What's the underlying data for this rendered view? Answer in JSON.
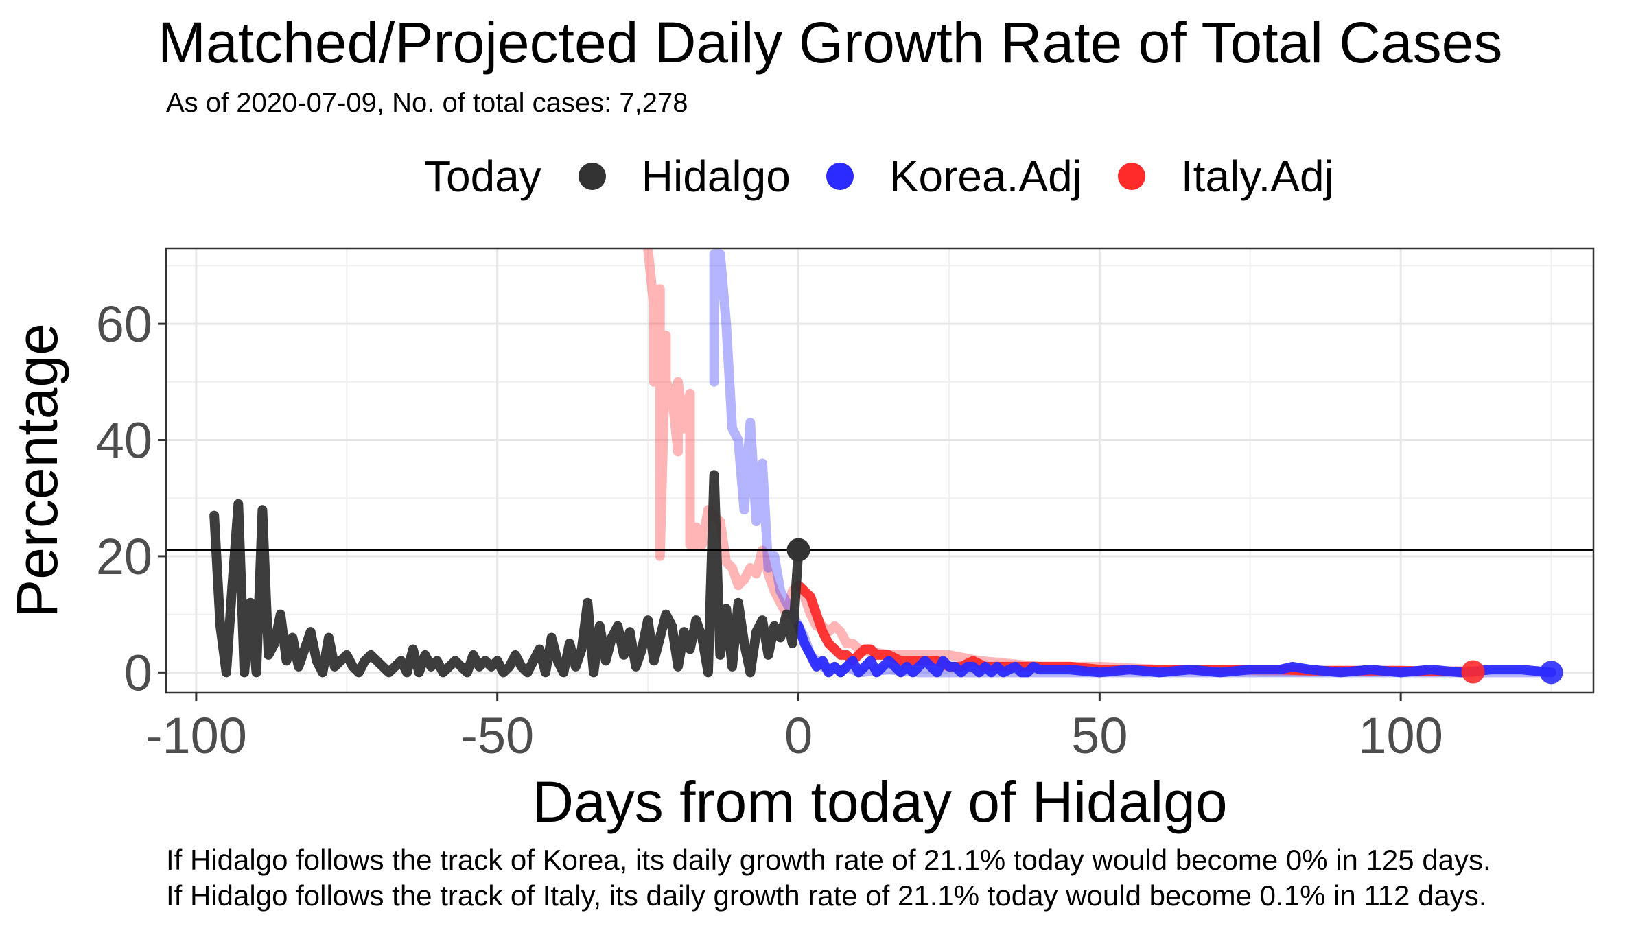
{
  "title": "Matched/Projected Daily Growth Rate of Total Cases",
  "subtitle": "As of 2020-07-09, No. of total cases: 7,278",
  "legend": {
    "title": "Today",
    "items": [
      {
        "label": "Hidalgo",
        "color": "#333333"
      },
      {
        "label": "Korea.Adj",
        "color": "#2b2bff"
      },
      {
        "label": "Italy.Adj",
        "color": "#ff2b2b"
      }
    ]
  },
  "footnotes": [
    "If Hidalgo follows the track of Korea, its daily growth rate of 21.1% today would become 0% in 125 days.",
    "If Hidalgo follows the track of Italy, its daily growth rate of 21.1% today would become 0.1% in 112 days."
  ],
  "chart_data": {
    "type": "line",
    "xlabel": "Days from today of Hidalgo",
    "ylabel": "Percentage",
    "xlim": [
      -105,
      132
    ],
    "ylim": [
      -3.5,
      73
    ],
    "xticks": [
      -100,
      -50,
      0,
      50,
      100
    ],
    "yticks": [
      0,
      20,
      40,
      60
    ],
    "grid": true,
    "legend_position": "top",
    "hline": 21.1,
    "today_point": {
      "x": 0,
      "y": 21.1
    },
    "series": [
      {
        "name": "Hidalgo",
        "color": "#333333",
        "x": [
          -97,
          -96,
          -95,
          -94,
          -93,
          -92,
          -91,
          -90,
          -89,
          -88,
          -87,
          -86,
          -85,
          -84,
          -83,
          -82,
          -81,
          -80,
          -79,
          -78,
          -77,
          -76,
          -75,
          -74,
          -73,
          -72,
          -71,
          -70,
          -69,
          -68,
          -67,
          -66,
          -65,
          -64,
          -63,
          -62,
          -61,
          -60,
          -59,
          -58,
          -57,
          -56,
          -55,
          -54,
          -53,
          -52,
          -51,
          -50,
          -49,
          -48,
          -47,
          -46,
          -45,
          -44,
          -43,
          -42,
          -41,
          -40,
          -39,
          -38,
          -37,
          -36,
          -35,
          -34,
          -33,
          -32,
          -31,
          -30,
          -29,
          -28,
          -27,
          -26,
          -25,
          -24,
          -23,
          -22,
          -21,
          -20,
          -19,
          -18,
          -17,
          -16,
          -15,
          -14,
          -13,
          -12,
          -11,
          -10,
          -9,
          -8,
          -7,
          -6,
          -5,
          -4,
          -3,
          -2,
          -1,
          0
        ],
        "y": [
          27,
          8,
          0,
          15,
          29,
          0,
          12,
          0,
          28,
          3,
          5,
          10,
          2,
          6,
          1,
          4,
          7,
          2,
          0,
          6,
          1,
          2,
          3,
          1,
          0,
          2,
          3,
          2,
          1,
          0,
          1,
          2,
          0,
          4,
          0,
          3,
          1,
          2,
          0,
          1,
          2,
          1,
          0,
          3,
          1,
          2,
          1,
          2,
          0,
          1,
          3,
          1,
          0,
          2,
          4,
          0,
          6,
          2,
          0,
          5,
          1,
          4,
          12,
          0,
          8,
          2,
          6,
          8,
          3,
          7,
          1,
          4,
          9,
          2,
          6,
          10,
          8,
          1,
          7,
          4,
          9,
          6,
          0,
          34,
          3,
          11,
          1,
          12,
          5,
          0,
          7,
          9,
          3,
          8,
          6,
          10,
          5,
          21.1
        ]
      },
      {
        "name": "Korea.Adj projected",
        "color": "#2b2bff",
        "x": [
          0,
          1,
          2,
          3,
          4,
          5,
          6,
          7,
          8,
          9,
          10,
          11,
          12,
          13,
          14,
          15,
          16,
          17,
          18,
          19,
          20,
          21,
          22,
          23,
          24,
          25,
          26,
          27,
          28,
          29,
          30,
          31,
          32,
          33,
          34,
          35,
          36,
          37,
          38,
          39,
          40,
          45,
          50,
          55,
          60,
          65,
          70,
          75,
          80,
          82,
          85,
          90,
          95,
          100,
          105,
          110,
          115,
          120,
          125
        ],
        "y": [
          8,
          5,
          3,
          1,
          2,
          0,
          1,
          0,
          1,
          2,
          0,
          1,
          2,
          0,
          1,
          2,
          1,
          0,
          1,
          0,
          1,
          2,
          1,
          0,
          2,
          1,
          1,
          0,
          1,
          1,
          0,
          1,
          0,
          1,
          0,
          0.5,
          1,
          0,
          0,
          1,
          0.5,
          0.5,
          0,
          0.5,
          0,
          0.5,
          0,
          0.5,
          0.5,
          1,
          0.5,
          0,
          0.5,
          0,
          0.5,
          0,
          0.5,
          0.5,
          0
        ]
      },
      {
        "name": "Korea.Adj matched",
        "color": "#2b2bff",
        "alpha": 0.35,
        "x": [
          -14,
          -14,
          -13,
          -12,
          -11,
          -10,
          -9,
          -8,
          -7,
          -6,
          -5,
          -4,
          -3,
          -2,
          -1,
          0,
          1,
          2,
          3,
          4,
          5,
          6,
          7,
          8,
          9,
          10,
          15,
          20,
          25,
          30,
          35,
          40,
          45,
          50,
          60,
          70,
          80,
          90,
          100,
          110,
          115,
          120,
          125
        ],
        "y": [
          50,
          72,
          72,
          60,
          42,
          40,
          28,
          43,
          26,
          36,
          18,
          20,
          14,
          12,
          10,
          8,
          6,
          3,
          2,
          1,
          0.5,
          1,
          0,
          1,
          0.5,
          0,
          0.5,
          0,
          0,
          0,
          0,
          0,
          0,
          0,
          0,
          0,
          0,
          0,
          0,
          0,
          0,
          0,
          0
        ]
      },
      {
        "name": "Italy.Adj projected",
        "color": "#ff2b2b",
        "x": [
          0,
          1,
          2,
          3,
          4,
          5,
          6,
          7,
          8,
          9,
          10,
          11,
          12,
          13,
          14,
          15,
          17,
          19,
          21,
          23,
          25,
          27,
          29,
          31,
          33,
          35,
          40,
          45,
          50,
          55,
          60,
          65,
          70,
          75,
          80,
          85,
          90,
          95,
          100,
          105,
          110,
          112
        ],
        "y": [
          15,
          14,
          13,
          10,
          7,
          5,
          4,
          3,
          3,
          2,
          3,
          4,
          4,
          3,
          3,
          3,
          2,
          2,
          2,
          2,
          1,
          1,
          2,
          1,
          1,
          1,
          1,
          1,
          0.5,
          0.5,
          0.5,
          0.5,
          0.5,
          0.5,
          0.5,
          0.3,
          0.3,
          0.3,
          0.3,
          0.2,
          0.2,
          0.1
        ]
      },
      {
        "name": "Italy.Adj matched",
        "color": "#ff2b2b",
        "alpha": 0.35,
        "x": [
          -25,
          -24,
          -24,
          -23,
          -23,
          -22,
          -22,
          -21,
          -20,
          -20,
          -19,
          -18,
          -18,
          -17,
          -17,
          -16,
          -15,
          -14,
          -13,
          -12,
          -11,
          -10,
          -9,
          -8,
          -7,
          -6,
          -5,
          -4,
          -3,
          -2,
          -1,
          0,
          1,
          2,
          3,
          4,
          5,
          6,
          7,
          8,
          9,
          10,
          15,
          20,
          25,
          30,
          40,
          50,
          60,
          80,
          100,
          112
        ],
        "y": [
          73,
          63,
          50,
          66,
          20,
          58,
          50,
          48,
          38,
          50,
          42,
          48,
          22,
          22,
          25,
          22,
          28,
          27,
          26,
          19,
          18,
          15,
          16,
          18,
          17,
          21,
          17,
          14,
          12,
          10,
          14,
          15,
          13,
          10,
          8,
          8,
          7,
          8,
          7,
          5,
          5,
          4,
          3,
          3,
          3,
          2,
          1,
          1,
          0.5,
          0.3,
          0.2,
          0.1
        ]
      }
    ],
    "end_points": [
      {
        "series": "Korea.Adj",
        "x": 125,
        "y": 0
      },
      {
        "series": "Italy.Adj",
        "x": 112,
        "y": 0.1
      }
    ]
  }
}
